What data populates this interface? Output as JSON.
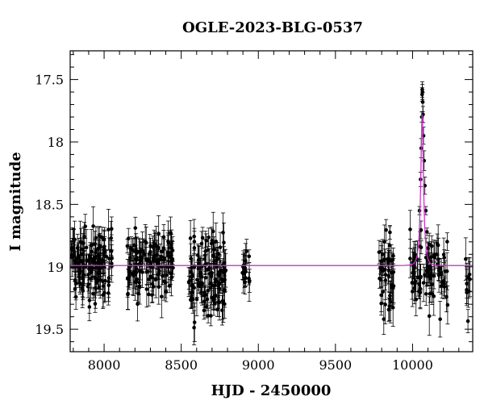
{
  "chart_data": {
    "type": "scatter",
    "title": "OGLE-2023-BLG-0537",
    "xlabel": "HJD - 2450000",
    "ylabel": "I magnitude",
    "xlim": [
      7780,
      10390
    ],
    "ylim": [
      19.68,
      17.27
    ],
    "y_inverted": true,
    "xticks": [
      8000,
      8500,
      9000,
      9500,
      10000
    ],
    "xtick_labels": [
      "8000",
      "8500",
      "9000",
      "9500",
      "10000"
    ],
    "yticks": [
      17.5,
      18,
      18.5,
      19,
      19.5
    ],
    "ytick_labels": [
      "17.5",
      "18",
      "18.5",
      "19",
      "19.5"
    ],
    "grid": false,
    "legend": "none",
    "marker_color": "#000000",
    "model_color": "#cc33cc",
    "observing_seasons": [
      {
        "x_range": [
          7785,
          8055
        ],
        "mean_mag": 18.99,
        "scatter_mag": 0.13,
        "n_points": 130
      },
      {
        "x_range": [
          8150,
          8450
        ],
        "mean_mag": 18.98,
        "scatter_mag": 0.12,
        "n_points": 125
      },
      {
        "x_range": [
          8540,
          8790
        ],
        "mean_mag": 19.06,
        "scatter_mag": 0.16,
        "n_points": 120
      },
      {
        "x_range": [
          8895,
          8945
        ],
        "mean_mag": 19.0,
        "scatter_mag": 0.08,
        "n_points": 18
      },
      {
        "x_range": [
          9780,
          9880
        ],
        "mean_mag": 19.05,
        "scatter_mag": 0.18,
        "n_points": 45
      },
      {
        "x_range": [
          9980,
          10230
        ],
        "mean_mag": 19.02,
        "scatter_mag": 0.15,
        "n_points": 80
      },
      {
        "x_range": [
          10330,
          10385
        ],
        "mean_mag": 19.1,
        "scatter_mag": 0.12,
        "n_points": 10
      }
    ],
    "peak_points": [
      {
        "x": 10045,
        "y": 18.55
      },
      {
        "x": 10052,
        "y": 18.3
      },
      {
        "x": 10056,
        "y": 18.05
      },
      {
        "x": 10060,
        "y": 17.8
      },
      {
        "x": 10062,
        "y": 17.62
      },
      {
        "x": 10063,
        "y": 17.58
      },
      {
        "x": 10064,
        "y": 17.6
      },
      {
        "x": 10066,
        "y": 17.68
      },
      {
        "x": 10068,
        "y": 17.78
      },
      {
        "x": 10071,
        "y": 17.95
      },
      {
        "x": 10075,
        "y": 18.15
      },
      {
        "x": 10080,
        "y": 18.35
      },
      {
        "x": 10086,
        "y": 18.55
      },
      {
        "x": 10093,
        "y": 18.72
      },
      {
        "x": 10100,
        "y": 18.85
      }
    ],
    "model": {
      "name": "",
      "baseline_mag": 18.99,
      "peak_x": 10062,
      "peak_mag": 17.78,
      "right_plateau_mag": 18.99
    }
  }
}
